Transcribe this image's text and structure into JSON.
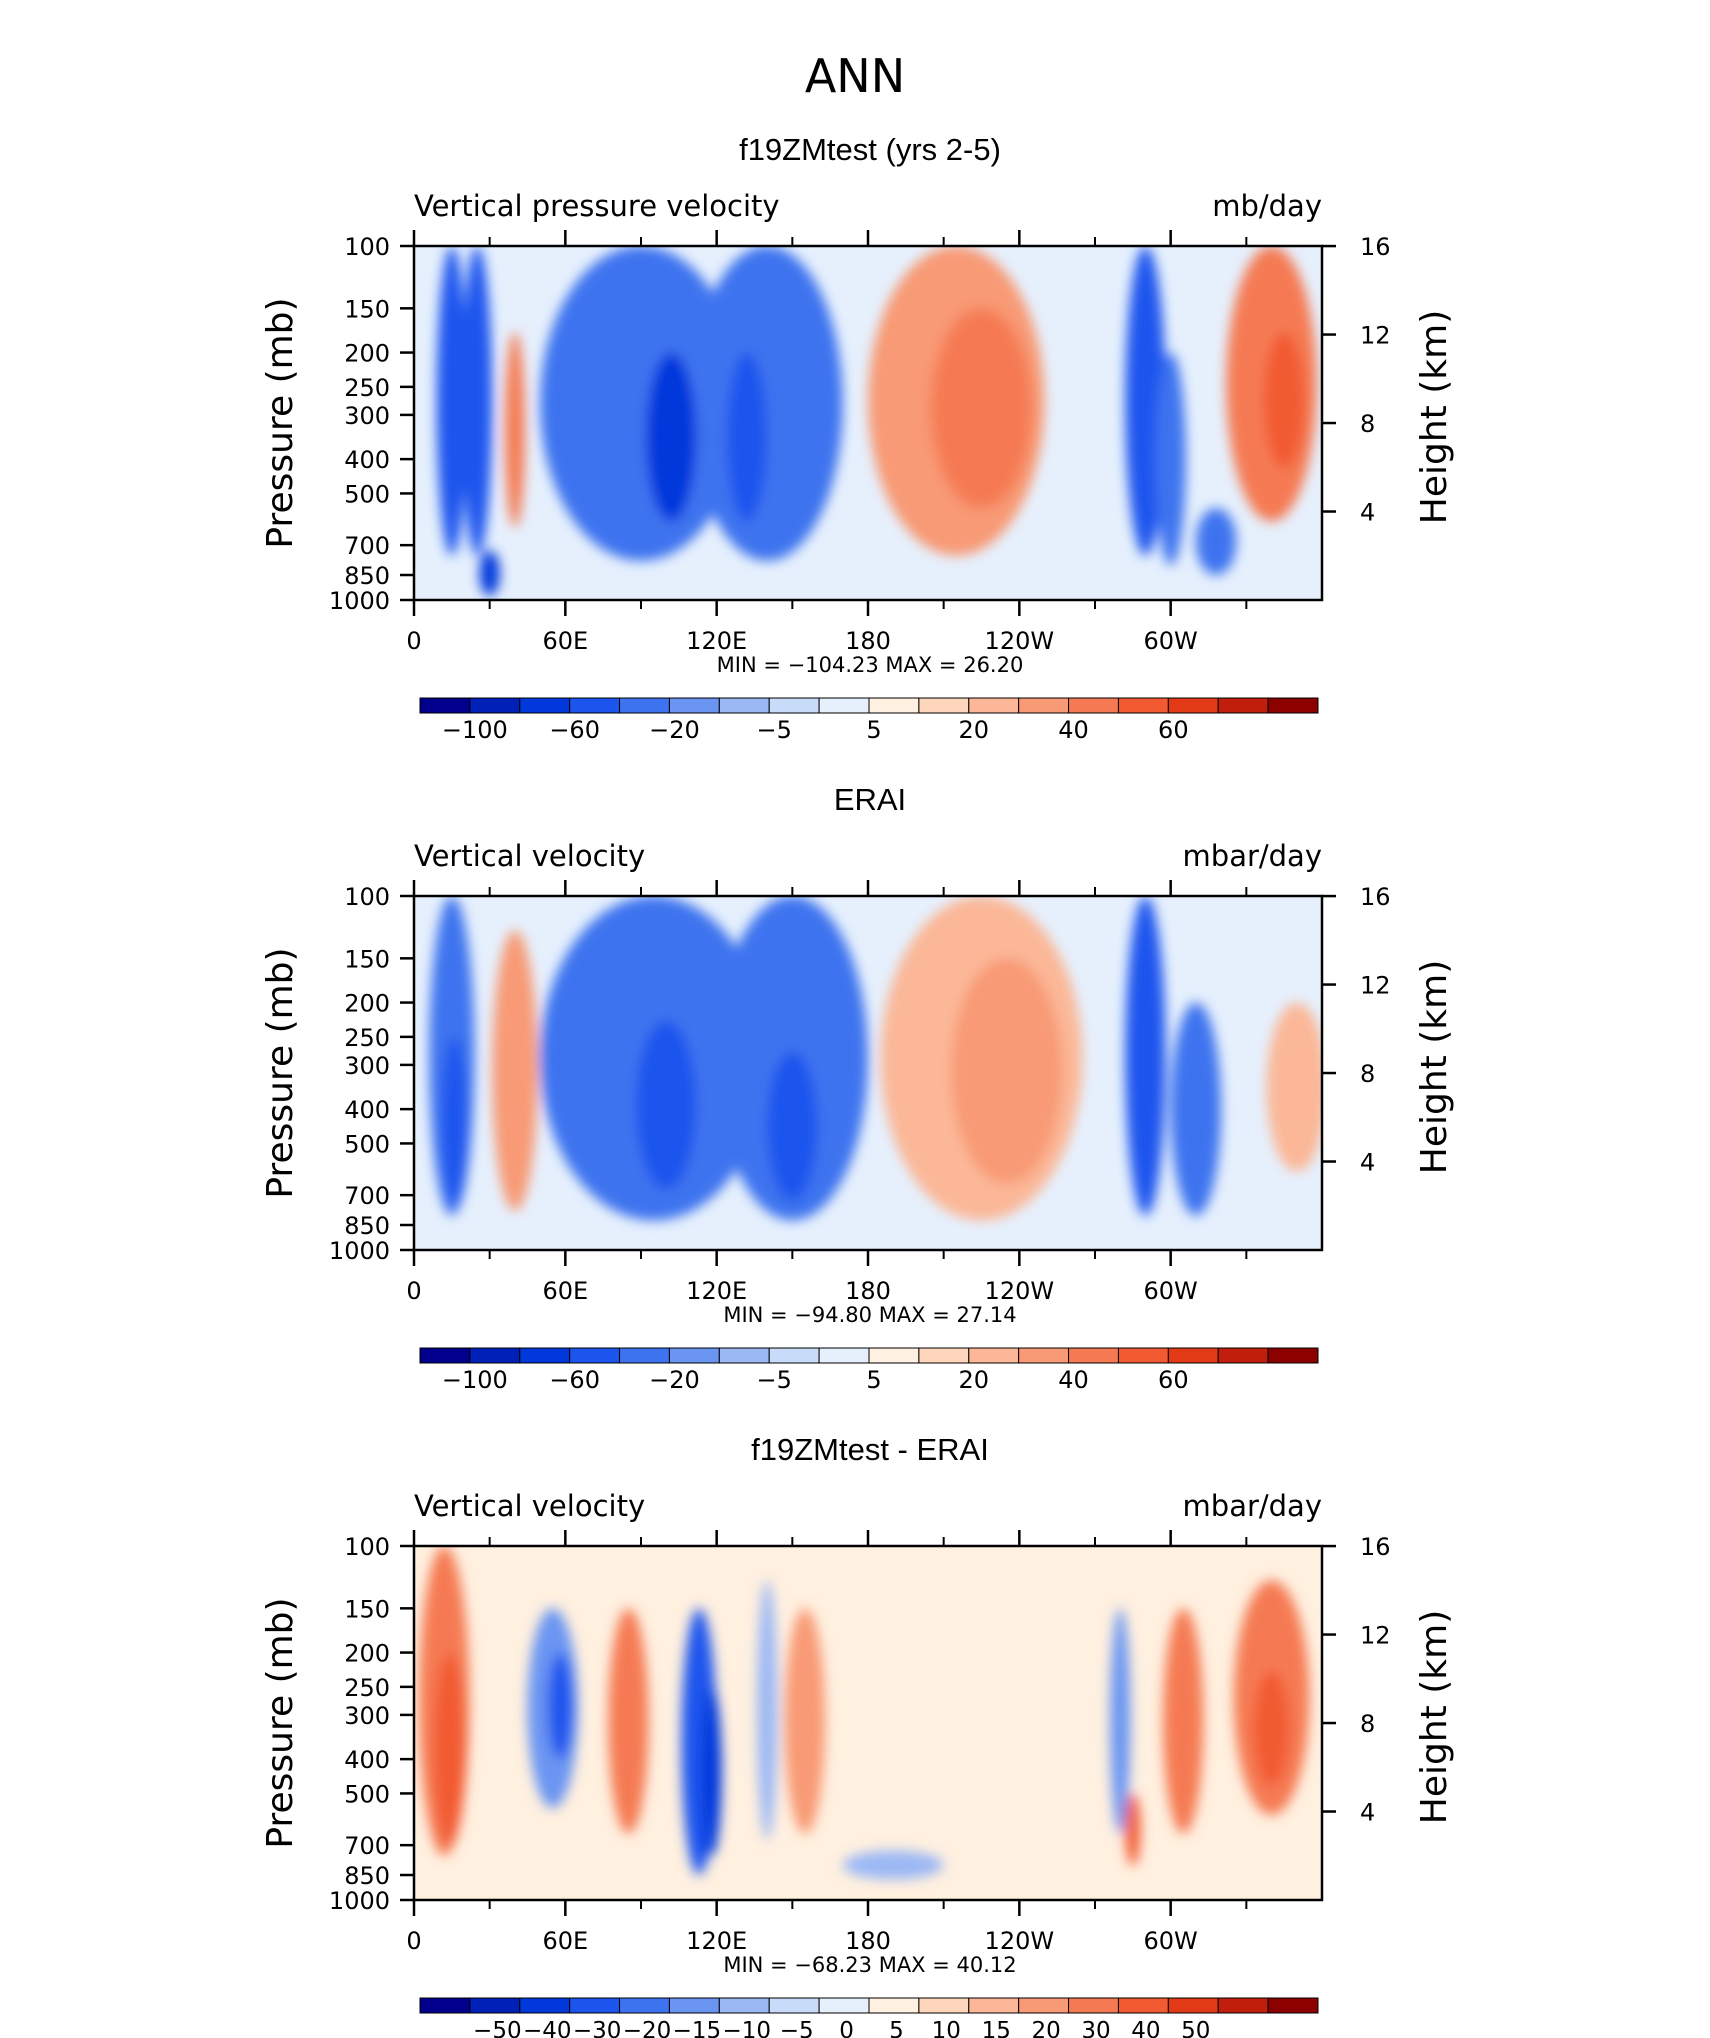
{
  "figure": {
    "title": "ANN"
  },
  "palettes": {
    "full": [
      "#00008c",
      "#0020b8",
      "#0038dc",
      "#1c55ee",
      "#3d73ef",
      "#6b95f2",
      "#9bb8f5",
      "#c8dcfa",
      "#e6f0fd",
      "#fff0e0",
      "#fdd6bc",
      "#fbb797",
      "#f89a75",
      "#f57a53",
      "#f25a32",
      "#e23a16",
      "#c11f0b",
      "#8c0000"
    ],
    "diff": [
      "#00008c",
      "#0020b8",
      "#0038dc",
      "#1c55ee",
      "#3d73ef",
      "#6b95f2",
      "#9bb8f5",
      "#c8dcfa",
      "#e6f0fd",
      "#fff0e0",
      "#fdd6bc",
      "#fbb797",
      "#f89a75",
      "#f57a53",
      "#f25a32",
      "#e23a16",
      "#c11f0b",
      "#8c0000"
    ]
  },
  "axes_common": {
    "x_ticks": [
      "0",
      "60E",
      "120E",
      "180",
      "120W",
      "60W"
    ],
    "y_ticks": [
      "100",
      "150",
      "200",
      "250",
      "300",
      "400",
      "500",
      "700",
      "850",
      "1000"
    ],
    "y2_ticks": [
      "16",
      "12",
      "8",
      "4"
    ],
    "ylabel": "Pressure (mb)",
    "y2label": "Height (km)"
  },
  "chart_data": [
    {
      "type": "heatmap",
      "title": "f19ZMtest (yrs 2-5)",
      "variable": "Vertical pressure velocity",
      "units": "mb/day",
      "stats_text": "MIN = −104.23   MAX =   26.20",
      "min": -104.23,
      "max": 26.2,
      "colorbar_labels": [
        "−100",
        "−60",
        "−20",
        "−5",
        "5",
        "20",
        "40",
        "60"
      ],
      "palette": "full",
      "xlim": [
        0,
        360
      ],
      "ylim": [
        1000,
        100
      ],
      "features": [
        {
          "lon": 15,
          "p": 400,
          "dlon": 6,
          "dp": 700,
          "level": 3
        },
        {
          "lon": 25,
          "p": 400,
          "dlon": 6,
          "dp": 700,
          "level": 3
        },
        {
          "lon": 30,
          "p": 850,
          "dlon": 4,
          "dp": 250,
          "level": 2
        },
        {
          "lon": 40,
          "p": 400,
          "dlon": 4,
          "dp": 450,
          "level": 13
        },
        {
          "lon": 90,
          "p": 400,
          "dlon": 40,
          "dp": 750,
          "level": 4
        },
        {
          "lon": 140,
          "p": 400,
          "dlon": 30,
          "dp": 750,
          "level": 4
        },
        {
          "lon": 102,
          "p": 400,
          "dlon": 10,
          "dp": 400,
          "level": 2
        },
        {
          "lon": 132,
          "p": 400,
          "dlon": 8,
          "dp": 400,
          "level": 3
        },
        {
          "lon": 215,
          "p": 400,
          "dlon": 35,
          "dp": 700,
          "level": 12
        },
        {
          "lon": 225,
          "p": 350,
          "dlon": 20,
          "dp": 400,
          "level": 13
        },
        {
          "lon": 290,
          "p": 400,
          "dlon": 8,
          "dp": 700,
          "level": 3
        },
        {
          "lon": 300,
          "p": 500,
          "dlon": 6,
          "dp": 600,
          "level": 4
        },
        {
          "lon": 318,
          "p": 700,
          "dlon": 8,
          "dp": 300,
          "level": 4
        },
        {
          "lon": 340,
          "p": 350,
          "dlon": 18,
          "dp": 500,
          "level": 13
        },
        {
          "lon": 345,
          "p": 300,
          "dlon": 8,
          "dp": 250,
          "level": 14
        }
      ]
    },
    {
      "type": "heatmap",
      "title": "ERAI",
      "variable": "Vertical velocity",
      "units": "mbar/day",
      "stats_text": "MIN = −94.80   MAX =   27.14",
      "min": -94.8,
      "max": 27.14,
      "colorbar_labels": [
        "−100",
        "−60",
        "−20",
        "−5",
        "5",
        "20",
        "40",
        "60"
      ],
      "palette": "full",
      "xlim": [
        0,
        360
      ],
      "ylim": [
        1000,
        100
      ],
      "features": [
        {
          "lon": 15,
          "p": 450,
          "dlon": 9,
          "dp": 700,
          "level": 4
        },
        {
          "lon": 16,
          "p": 500,
          "dlon": 5,
          "dp": 500,
          "level": 3
        },
        {
          "lon": 40,
          "p": 450,
          "dlon": 9,
          "dp": 650,
          "level": 12
        },
        {
          "lon": 95,
          "p": 450,
          "dlon": 45,
          "dp": 750,
          "level": 4
        },
        {
          "lon": 150,
          "p": 450,
          "dlon": 30,
          "dp": 750,
          "level": 4
        },
        {
          "lon": 100,
          "p": 450,
          "dlon": 12,
          "dp": 450,
          "level": 3
        },
        {
          "lon": 150,
          "p": 500,
          "dlon": 10,
          "dp": 450,
          "level": 3
        },
        {
          "lon": 225,
          "p": 450,
          "dlon": 40,
          "dp": 750,
          "level": 11
        },
        {
          "lon": 235,
          "p": 400,
          "dlon": 22,
          "dp": 500,
          "level": 12
        },
        {
          "lon": 290,
          "p": 450,
          "dlon": 8,
          "dp": 700,
          "level": 3
        },
        {
          "lon": 310,
          "p": 500,
          "dlon": 10,
          "dp": 600,
          "level": 4
        },
        {
          "lon": 350,
          "p": 400,
          "dlon": 12,
          "dp": 400,
          "level": 11
        }
      ]
    },
    {
      "type": "heatmap",
      "title": "f19ZMtest - ERAI",
      "variable": "Vertical velocity",
      "units": "mbar/day",
      "stats_text": "MIN = −68.23   MAX =   40.12",
      "min": -68.23,
      "max": 40.12,
      "colorbar_labels": [
        "−50",
        "−40",
        "−30",
        "−20",
        "−15",
        "−10",
        "−5",
        "0",
        "5",
        "10",
        "15",
        "20",
        "30",
        "40",
        "50"
      ],
      "palette": "diff",
      "xlim": [
        0,
        360
      ],
      "ylim": [
        1000,
        100
      ],
      "features": [
        {
          "lon": 12,
          "p": 400,
          "dlon": 10,
          "dp": 700,
          "level": 13
        },
        {
          "lon": 14,
          "p": 450,
          "dlon": 6,
          "dp": 500,
          "level": 14
        },
        {
          "lon": 55,
          "p": 350,
          "dlon": 10,
          "dp": 400,
          "level": 5
        },
        {
          "lon": 58,
          "p": 300,
          "dlon": 5,
          "dp": 200,
          "level": 3
        },
        {
          "lon": 85,
          "p": 400,
          "dlon": 8,
          "dp": 500,
          "level": 13
        },
        {
          "lon": 113,
          "p": 500,
          "dlon": 7,
          "dp": 700,
          "level": 3
        },
        {
          "lon": 118,
          "p": 500,
          "dlon": 4,
          "dp": 500,
          "level": 2
        },
        {
          "lon": 140,
          "p": 400,
          "dlon": 4,
          "dp": 550,
          "level": 6
        },
        {
          "lon": 155,
          "p": 400,
          "dlon": 8,
          "dp": 500,
          "level": 12
        },
        {
          "lon": 190,
          "p": 800,
          "dlon": 20,
          "dp": 150,
          "level": 6
        },
        {
          "lon": 280,
          "p": 400,
          "dlon": 4,
          "dp": 500,
          "level": 5
        },
        {
          "lon": 285,
          "p": 650,
          "dlon": 3,
          "dp": 300,
          "level": 14
        },
        {
          "lon": 305,
          "p": 400,
          "dlon": 8,
          "dp": 500,
          "level": 13
        },
        {
          "lon": 340,
          "p": 350,
          "dlon": 15,
          "dp": 450,
          "level": 13
        },
        {
          "lon": 340,
          "p": 350,
          "dlon": 7,
          "dp": 250,
          "level": 14
        }
      ]
    }
  ]
}
